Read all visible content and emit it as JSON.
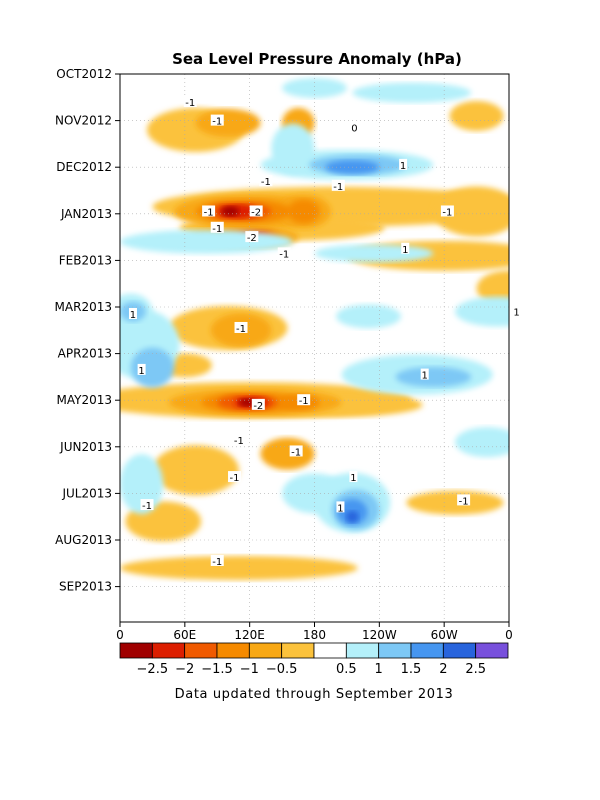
{
  "chart_data": {
    "type": "heatmap",
    "title": "Sea Level Pressure Anomaly (hPa)",
    "footnote": "Data updated through September 2013",
    "x_ticks": [
      "0",
      "60E",
      "120E",
      "180",
      "120W",
      "60W",
      "0"
    ],
    "y_ticks": [
      "OCT2012",
      "NOV2012",
      "DEC2012",
      "JAN2013",
      "FEB2013",
      "MAR2013",
      "APR2013",
      "MAY2013",
      "JUN2013",
      "JUL2013",
      "AUG2013",
      "SEP2013"
    ],
    "x_range": [
      0,
      360
    ],
    "grid": true,
    "colorbar": {
      "colors": [
        "#a00000",
        "#dc1e00",
        "#f05a00",
        "#f58a00",
        "#f8a814",
        "#fbc23c",
        "#ffffff",
        "#b4f0fa",
        "#7dc8f5",
        "#4696f0",
        "#2864dc",
        "#7850dc"
      ],
      "tick_labels": [
        "-2.5",
        "-2",
        "-1.5",
        "-1",
        "-0.5",
        "0.5",
        "1",
        "1.5",
        "2",
        "2.5"
      ]
    },
    "contour_labels": [
      {
        "text": "-1",
        "x": 65,
        "t": 0.6
      },
      {
        "text": "-1",
        "x": 90,
        "t": 1.0
      },
      {
        "text": "-1",
        "x": 135,
        "t": 2.3
      },
      {
        "text": "0",
        "x": 217,
        "t": 1.15
      },
      {
        "text": "1",
        "x": 262,
        "t": 1.95
      },
      {
        "text": "-1",
        "x": 202,
        "t": 2.4
      },
      {
        "text": "-1",
        "x": 82,
        "t": 2.95
      },
      {
        "text": "-2",
        "x": 126,
        "t": 2.95
      },
      {
        "text": "-1",
        "x": 303,
        "t": 2.95
      },
      {
        "text": "1",
        "x": 264,
        "t": 3.75
      },
      {
        "text": "-1",
        "x": 90,
        "t": 3.3
      },
      {
        "text": "-2",
        "x": 122,
        "t": 3.5
      },
      {
        "text": "-1",
        "x": 152,
        "t": 3.85
      },
      {
        "text": "1",
        "x": 12,
        "t": 5.15
      },
      {
        "text": "-1",
        "x": 112,
        "t": 5.45
      },
      {
        "text": "1",
        "x": 367,
        "t": 5.1
      },
      {
        "text": "1",
        "x": 20,
        "t": 6.35
      },
      {
        "text": "1",
        "x": 282,
        "t": 6.45
      },
      {
        "text": "-2",
        "x": 128,
        "t": 7.1
      },
      {
        "text": "-1",
        "x": 170,
        "t": 7.0
      },
      {
        "text": "-1",
        "x": 110,
        "t": 7.85
      },
      {
        "text": "-1",
        "x": 163,
        "t": 8.1
      },
      {
        "text": "-1",
        "x": 106,
        "t": 8.65
      },
      {
        "text": "1",
        "x": 216,
        "t": 8.65
      },
      {
        "text": "1",
        "x": 204,
        "t": 9.3
      },
      {
        "text": "-1",
        "x": 25,
        "t": 9.25
      },
      {
        "text": "-1",
        "x": 318,
        "t": 9.15
      },
      {
        "text": "-1",
        "x": 90,
        "t": 10.45
      }
    ]
  }
}
